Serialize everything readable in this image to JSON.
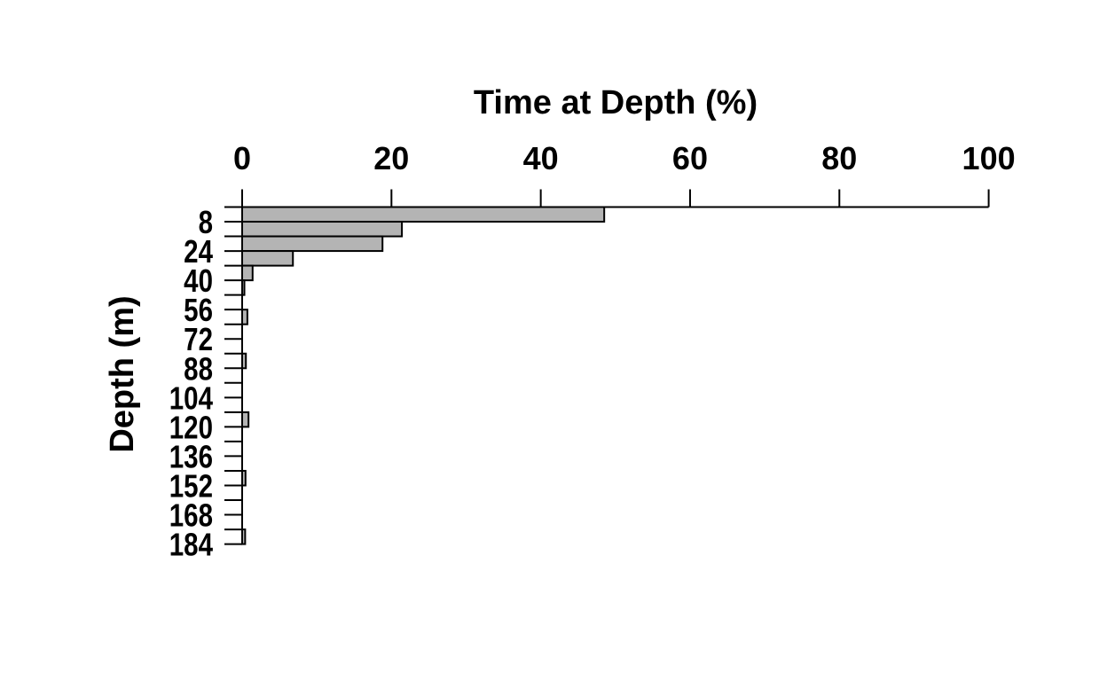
{
  "page": {
    "background": "#ffffff",
    "text_color": "#000000"
  },
  "chart_data": {
    "type": "bar",
    "orientation": "horizontal",
    "title": "Time at Depth (%)",
    "xlabel": "Time at Depth (%)",
    "ylabel": "Depth (m)",
    "x_ticks": [
      0,
      20,
      40,
      60,
      80,
      100
    ],
    "xlim": [
      0,
      100
    ],
    "x_unit": "%",
    "grid": false,
    "legend_position": "none",
    "bar_fill": "#b4b4b4",
    "bar_stroke": "#000000",
    "axis_color": "#000000",
    "y_axis": {
      "unit": "m",
      "min_depth_m": 0,
      "max_depth_m": 184,
      "tick_step_m": 8,
      "bin_width_m": 8,
      "labeled_ticks_m": [
        8,
        24,
        40,
        56,
        72,
        88,
        104,
        120,
        136,
        152,
        168,
        184
      ]
    },
    "series": [
      {
        "name": "Time at Depth",
        "unit": "%",
        "bins": [
          {
            "from_m": 0,
            "to_m": 8,
            "value_pct": 48.5
          },
          {
            "from_m": 8,
            "to_m": 16,
            "value_pct": 21.4
          },
          {
            "from_m": 16,
            "to_m": 24,
            "value_pct": 18.8
          },
          {
            "from_m": 24,
            "to_m": 32,
            "value_pct": 6.8
          },
          {
            "from_m": 32,
            "to_m": 40,
            "value_pct": 1.4
          },
          {
            "from_m": 40,
            "to_m": 48,
            "value_pct": 0.3
          },
          {
            "from_m": 48,
            "to_m": 56,
            "value_pct": 0
          },
          {
            "from_m": 56,
            "to_m": 64,
            "value_pct": 0.7
          },
          {
            "from_m": 64,
            "to_m": 72,
            "value_pct": 0
          },
          {
            "from_m": 72,
            "to_m": 80,
            "value_pct": 0
          },
          {
            "from_m": 80,
            "to_m": 88,
            "value_pct": 0.5
          },
          {
            "from_m": 88,
            "to_m": 96,
            "value_pct": 0
          },
          {
            "from_m": 96,
            "to_m": 104,
            "value_pct": 0
          },
          {
            "from_m": 104,
            "to_m": 112,
            "value_pct": 0
          },
          {
            "from_m": 112,
            "to_m": 120,
            "value_pct": 0.85
          },
          {
            "from_m": 120,
            "to_m": 128,
            "value_pct": 0
          },
          {
            "from_m": 128,
            "to_m": 136,
            "value_pct": 0
          },
          {
            "from_m": 136,
            "to_m": 144,
            "value_pct": 0
          },
          {
            "from_m": 144,
            "to_m": 152,
            "value_pct": 0.45
          },
          {
            "from_m": 152,
            "to_m": 160,
            "value_pct": 0
          },
          {
            "from_m": 160,
            "to_m": 168,
            "value_pct": 0
          },
          {
            "from_m": 168,
            "to_m": 176,
            "value_pct": 0
          },
          {
            "from_m": 176,
            "to_m": 184,
            "value_pct": 0.4
          }
        ]
      }
    ]
  }
}
